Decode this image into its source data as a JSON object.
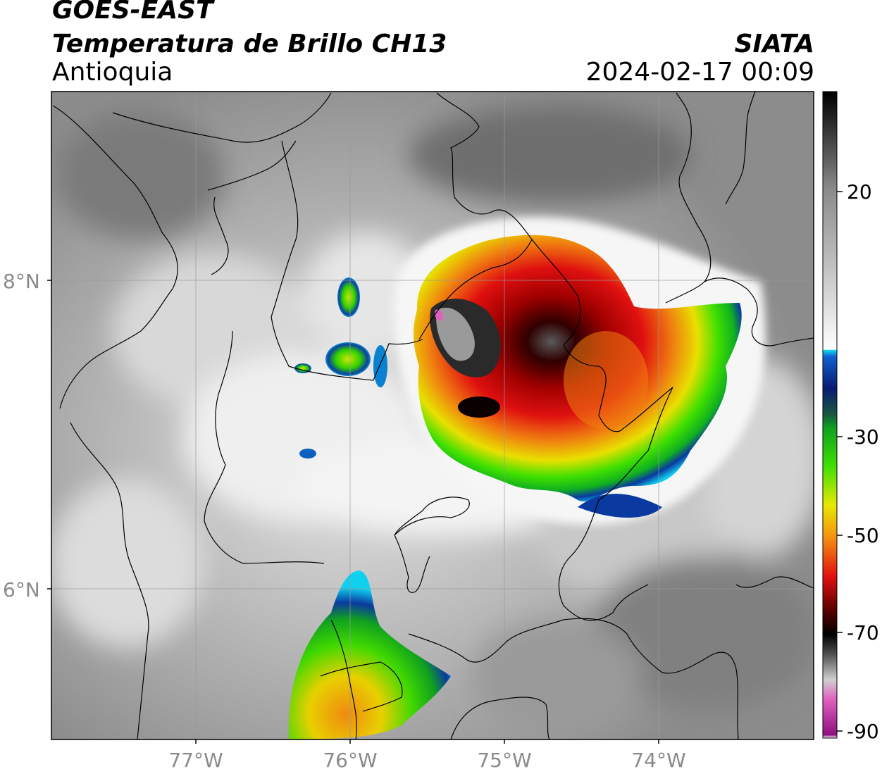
{
  "header": {
    "satellite": "GOES-EAST",
    "product": "Temperatura de Brillo CH13",
    "region": "Antioquia",
    "organization": "SIATA",
    "datetime": "2024-02-17 00:09"
  },
  "map": {
    "lat_labels": [
      "8°N",
      "6°N"
    ],
    "lon_labels": [
      "77°W",
      "76°W",
      "75°W",
      "74°W"
    ]
  },
  "colorbar": {
    "tick_labels": [
      "20",
      "-30",
      "-50",
      "-70",
      "-90"
    ],
    "colors": {
      "warm_top": "#111111",
      "gray_mid": "#9a9a9a",
      "white": "#f6f6f6",
      "cyan": "#10d8f0",
      "blue": "#0a2a9a",
      "green": "#10c020",
      "yellow": "#e8e800",
      "orange": "#f49010",
      "red": "#e01010",
      "darkred": "#600000",
      "black": "#000000",
      "pink": "#e060c0",
      "purple": "#901080"
    }
  }
}
